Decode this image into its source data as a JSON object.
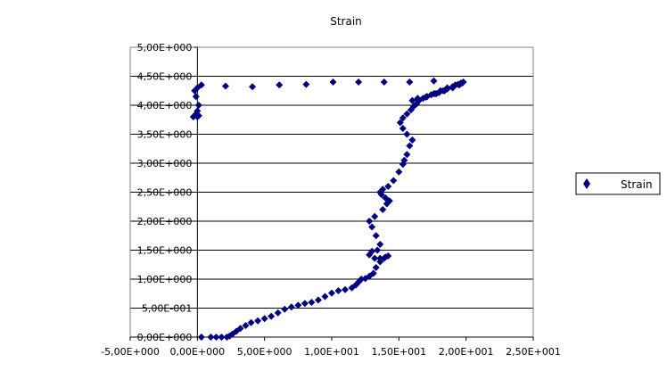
{
  "chart_data": {
    "type": "scatter",
    "title": "Strain",
    "xlabel": "",
    "ylabel": "",
    "xlim": [
      -5,
      25
    ],
    "ylim": [
      0,
      5
    ],
    "x_ticks": [
      -5,
      0,
      5,
      10,
      15,
      20,
      25
    ],
    "x_tick_labels": [
      "-5,00E+000",
      "0,00E+000",
      "5,00E+000",
      "1,00E+001",
      "1,50E+001",
      "2,00E+001",
      "2,50E+001"
    ],
    "y_ticks": [
      0,
      0.5,
      1,
      1.5,
      2,
      2.5,
      3,
      3.5,
      4,
      4.5,
      5
    ],
    "y_tick_labels": [
      "0,00E+000",
      "5,00E-001",
      "1,00E+000",
      "1,50E+000",
      "2,00E+000",
      "2,50E+000",
      "3,00E+000",
      "3,50E+000",
      "4,00E+000",
      "4,50E+000",
      "5,00E+000"
    ],
    "grid": "horizontal",
    "legend_position": "right",
    "marker_color": "#000080",
    "series": [
      {
        "name": "Strain",
        "x": [
          0.3,
          1.0,
          1.4,
          1.8,
          2.2,
          2.4,
          2.6,
          2.9,
          3.2,
          3.6,
          4.0,
          4.5,
          5.0,
          5.5,
          6.0,
          6.5,
          7.0,
          7.5,
          8.0,
          8.5,
          9.0,
          9.5,
          10.0,
          10.5,
          11.0,
          11.5,
          11.8,
          12.0,
          12.2,
          12.5,
          12.8,
          13.1,
          13.3,
          13.6,
          13.9,
          14.2,
          14.0,
          13.6,
          13.2,
          12.8,
          13.0,
          13.4,
          13.6,
          13.3,
          13.0,
          12.8,
          13.2,
          13.8,
          14.1,
          14.3,
          14.0,
          13.7,
          13.6,
          13.8,
          14.2,
          14.6,
          15.0,
          15.3,
          15.4,
          15.6,
          15.8,
          16.0,
          15.6,
          15.3,
          15.1,
          15.3,
          15.6,
          15.9,
          16.1,
          16.3,
          16.5,
          16.8,
          17.1,
          17.4,
          17.7,
          18.0,
          18.3,
          18.6,
          19.0,
          19.4,
          19.7,
          19.5,
          19.0,
          18.4,
          17.8,
          17.1,
          16.4,
          16.0,
          16.4,
          17.0,
          17.6,
          18.1,
          18.6,
          19.2,
          19.6,
          19.8,
          17.6,
          15.8,
          13.9,
          12.0,
          10.1,
          8.1,
          6.1,
          4.1,
          2.1,
          0.3,
          0.0,
          -0.2,
          -0.1,
          0.1,
          0.0,
          -0.1,
          0.1,
          0.0,
          -0.3
        ],
        "y": [
          0.0,
          0.0,
          0.0,
          0.0,
          0.0,
          0.02,
          0.05,
          0.1,
          0.15,
          0.2,
          0.25,
          0.28,
          0.32,
          0.36,
          0.42,
          0.48,
          0.52,
          0.55,
          0.58,
          0.6,
          0.64,
          0.7,
          0.76,
          0.8,
          0.82,
          0.85,
          0.9,
          0.95,
          1.0,
          1.01,
          1.05,
          1.1,
          1.2,
          1.3,
          1.36,
          1.4,
          1.38,
          1.36,
          1.36,
          1.42,
          1.48,
          1.5,
          1.6,
          1.75,
          1.9,
          2.0,
          2.08,
          2.2,
          2.3,
          2.35,
          2.4,
          2.46,
          2.5,
          2.55,
          2.6,
          2.7,
          2.85,
          2.98,
          3.05,
          3.15,
          3.3,
          3.4,
          3.5,
          3.6,
          3.7,
          3.78,
          3.85,
          3.92,
          3.98,
          4.02,
          4.08,
          4.12,
          4.15,
          4.18,
          4.2,
          4.22,
          4.25,
          4.28,
          4.32,
          4.36,
          4.38,
          4.35,
          4.3,
          4.25,
          4.2,
          4.15,
          4.12,
          4.08,
          4.1,
          4.14,
          4.2,
          4.25,
          4.3,
          4.35,
          4.38,
          4.4,
          4.42,
          4.4,
          4.4,
          4.4,
          4.4,
          4.36,
          4.35,
          4.32,
          4.33,
          4.35,
          4.3,
          4.25,
          4.15,
          4.0,
          3.9,
          3.85,
          3.82,
          3.8,
          3.8
        ]
      }
    ],
    "legend": [
      {
        "label": "Strain"
      }
    ]
  }
}
